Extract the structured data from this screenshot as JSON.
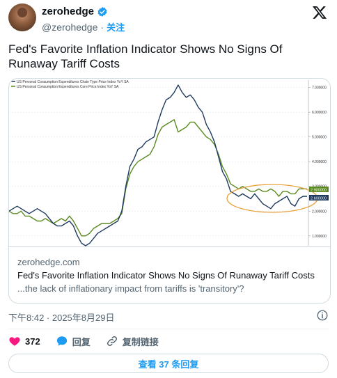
{
  "author": {
    "display_name": "zerohedge",
    "handle": "@zerohedge",
    "separator": "·",
    "follow_label": "关注"
  },
  "tweet": {
    "text": "Fed's Favorite Inflation Indicator Shows No Signs Of Runaway Tariff Costs",
    "timestamp": "下午8:42 · 2025年8月29日"
  },
  "card": {
    "domain": "zerohedge.com",
    "title": "Fed's Favorite Inflation Indicator Shows No Signs Of Runaway Tariff Costs",
    "description": "...the lack of inflationary impact from tariffs is 'transitory'?"
  },
  "actions": {
    "likes_count": "372",
    "reply_label": "回复",
    "copy_link_label": "复制链接"
  },
  "replies_button": "查看 37 条回复",
  "colors": {
    "accent": "#1d9bf0",
    "like": "#f91880",
    "headline_series": "#1f3a5f",
    "core_series": "#5a8a1f",
    "highlight_ellipse": "#e8a33d"
  },
  "icons": {
    "verified": "verified-badge-icon",
    "x_logo": "x-logo-icon",
    "info": "info-icon",
    "like": "heart-icon",
    "reply": "speech-bubble-icon",
    "copy_link": "link-icon"
  },
  "chart_data": {
    "type": "line",
    "legend": [
      "US Personal Consumption Expenditures Chain Type Price Index YoY SA",
      "US Personal Consumption Expenditures Core Price Index YoY SA"
    ],
    "legend_values": [
      "2.600000",
      "2.900000"
    ],
    "y_ticks": [
      "7.000000",
      "6.000000",
      "5.000000",
      "4.000000",
      "3.000000",
      "2.000000",
      "1.000000"
    ],
    "ylim": [
      0.6,
      7.3
    ],
    "series": [
      {
        "values": [
          2.0,
          2.1,
          2.2,
          2.1,
          2.0,
          1.9,
          2.0,
          2.1,
          2.0,
          1.9,
          1.7,
          1.5,
          1.4,
          1.4,
          1.5,
          1.6,
          1.4,
          1.0,
          0.7,
          0.6,
          0.7,
          0.9,
          1.1,
          1.2,
          1.3,
          1.4,
          1.5,
          1.6,
          2.0,
          3.0,
          3.8,
          4.1,
          4.5,
          4.6,
          4.8,
          4.9,
          5.0,
          5.6,
          6.1,
          6.5,
          6.6,
          6.8,
          7.1,
          6.8,
          6.6,
          6.7,
          6.5,
          6.2,
          6.0,
          5.5,
          5.2,
          4.8,
          4.2,
          3.6,
          3.3,
          2.8,
          2.7,
          2.6,
          2.7,
          2.6,
          2.5,
          2.7,
          2.5,
          2.3,
          2.2,
          2.1,
          2.3,
          2.4,
          2.5,
          2.6,
          2.3,
          2.2,
          2.5,
          2.6,
          2.6
        ]
      },
      {
        "values": [
          2.0,
          1.9,
          1.9,
          2.0,
          1.8,
          1.8,
          1.7,
          1.6,
          1.6,
          1.7,
          1.6,
          1.5,
          1.6,
          1.7,
          1.6,
          1.8,
          1.6,
          1.3,
          1.0,
          1.0,
          1.1,
          1.3,
          1.4,
          1.5,
          1.5,
          1.5,
          1.6,
          1.7,
          1.9,
          2.9,
          3.5,
          3.8,
          4.0,
          4.1,
          4.2,
          4.3,
          4.6,
          5.1,
          5.4,
          5.5,
          5.6,
          5.7,
          5.2,
          5.3,
          5.4,
          5.6,
          5.6,
          5.4,
          5.2,
          5.0,
          4.9,
          4.7,
          4.3,
          3.8,
          3.5,
          3.1,
          3.0,
          2.9,
          3.0,
          2.9,
          2.8,
          2.8,
          2.9,
          2.8,
          2.8,
          2.9,
          2.8,
          2.6,
          2.8,
          2.8,
          2.7,
          2.7,
          2.9,
          2.9,
          2.9
        ]
      }
    ]
  }
}
